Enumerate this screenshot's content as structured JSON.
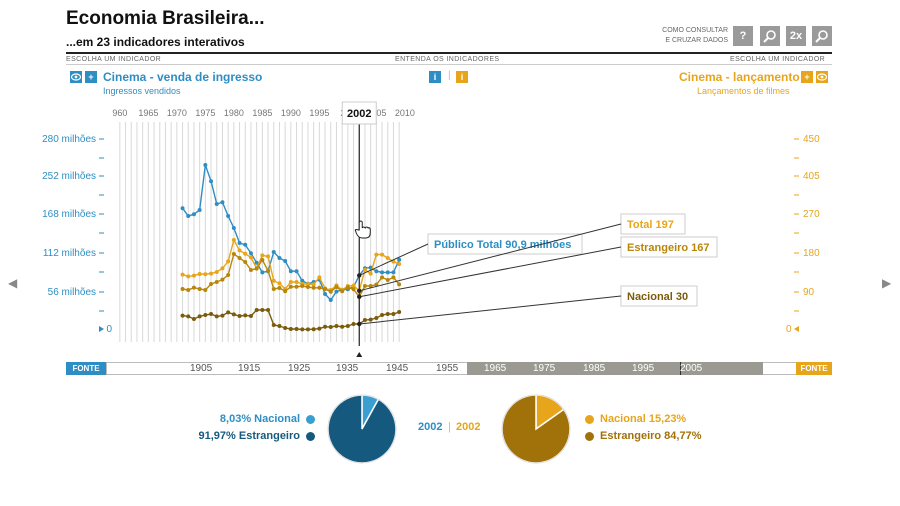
{
  "header": {
    "title": "Economia Brasileira...",
    "subtitle": "...em 23 indicadores interativos",
    "consult_line1": "COMO CONSULTAR",
    "consult_line2": "E CRUZAR DADOS",
    "help_label": "?",
    "zoom2x_label": "2x"
  },
  "sections": {
    "left_caption": "ESCOLHA UM INDICADOR",
    "center_caption": "ENTENDA OS INDICADORES",
    "right_caption": "ESCOLHA UM INDICADOR"
  },
  "left_indicator": {
    "title": "Cinema - venda de ingresso",
    "subtitle": "Ingressos vendidos",
    "color": "#2e8ec3"
  },
  "right_indicator": {
    "title": "Cinema - lançamento",
    "subtitle": "Lançamentos de filmes",
    "color": "#e7a51b"
  },
  "info_icon_label": "i",
  "plus_label": "+",
  "chart_data": {
    "type": "line",
    "x_axis_ticks": [
      "960",
      "1965",
      "1970",
      "1975",
      "1980",
      "1985",
      "1990",
      "1995",
      "200",
      "2005",
      "2010"
    ],
    "y_left_ticks": [
      "280 milhões",
      "252 milhões",
      "168 milhões",
      "112 milhões",
      "56 milhões",
      "0"
    ],
    "y_right_ticks": [
      "450",
      "405",
      "270",
      "180",
      "90",
      "0"
    ],
    "selected_year": "2002",
    "series": [
      {
        "name": "Público Total",
        "axis": "left",
        "color": "#2e8ec3",
        "x": [
          1971,
          1972,
          1973,
          1974,
          1975,
          1976,
          1977,
          1978,
          1979,
          1980,
          1981,
          1982,
          1983,
          1984,
          1985,
          1986,
          1987,
          1988,
          1989,
          1990,
          1991,
          1992,
          1993,
          1994,
          1995,
          1996,
          1997,
          1998,
          1999,
          2000,
          2001,
          2002,
          2003,
          2004,
          2005,
          2006,
          2007,
          2008,
          2009
        ],
        "values": [
          203,
          190,
          193,
          200,
          275,
          248,
          210,
          213,
          190,
          170,
          145,
          142,
          128,
          112,
          96,
          98,
          130,
          120,
          115,
          98,
          98,
          82,
          77,
          80,
          84,
          60,
          50,
          64,
          67,
          68,
          72,
          91,
          103,
          104,
          98,
          96,
          96,
          96,
          117
        ]
      },
      {
        "name": "Total",
        "axis": "right",
        "color": "#e7a51b",
        "x": [
          1971,
          1972,
          1973,
          1974,
          1975,
          1976,
          1977,
          1978,
          1979,
          1980,
          1981,
          1982,
          1983,
          1984,
          1985,
          1986,
          1987,
          1988,
          1989,
          1990,
          1991,
          1992,
          1993,
          1994,
          1995,
          1996,
          1997,
          1998,
          1999,
          2000,
          2001,
          2002,
          2003,
          2004,
          2005,
          2006,
          2007,
          2008,
          2009
        ],
        "values": [
          277,
          268,
          272,
          280,
          279,
          282,
          290,
          308,
          343,
          450,
          398,
          381,
          363,
          309,
          373,
          368,
          246,
          233,
          205,
          240,
          240,
          230,
          230,
          228,
          263,
          208,
          200,
          223,
          200,
          220,
          222,
          196,
          301,
          282,
          377,
          377,
          360,
          342,
          330
        ]
      },
      {
        "name": "Estrangeiro",
        "axis": "right",
        "color": "#b8860b",
        "x": [
          1971,
          1972,
          1973,
          1974,
          1975,
          1976,
          1977,
          1978,
          1979,
          1980,
          1981,
          1982,
          1983,
          1984,
          1985,
          1986,
          1987,
          1988,
          1989,
          1990,
          1991,
          1992,
          1993,
          1994,
          1995,
          1996,
          1997,
          1998,
          1999,
          2000,
          2001,
          2002,
          2003,
          2004,
          2005,
          2006,
          2007,
          2008,
          2009
        ],
        "values": [
          205,
          200,
          212,
          205,
          200,
          230,
          240,
          252,
          275,
          380,
          360,
          340,
          300,
          307,
          350,
          297,
          205,
          210,
          194,
          216,
          216,
          220,
          215,
          211,
          211,
          205,
          191,
          215,
          194,
          213,
          204,
          166,
          220,
          220,
          227,
          263,
          250,
          263,
          228
        ]
      },
      {
        "name": "Nacional",
        "axis": "right",
        "color": "#7a5c0c",
        "x": [
          1971,
          1972,
          1973,
          1974,
          1975,
          1976,
          1977,
          1978,
          1979,
          1980,
          1981,
          1982,
          1983,
          1984,
          1985,
          1986,
          1987,
          1988,
          1989,
          1990,
          1991,
          1992,
          1993,
          1994,
          1995,
          1996,
          1997,
          1998,
          1999,
          2000,
          2001,
          2002,
          2003,
          2004,
          2005,
          2006,
          2007,
          2008,
          2009
        ],
        "values": [
          72,
          68,
          55,
          68,
          75,
          80,
          68,
          72,
          88,
          78,
          70,
          73,
          70,
          100,
          100,
          100,
          25,
          20,
          10,
          5,
          5,
          3,
          3,
          4,
          7,
          16,
          15,
          20,
          16,
          20,
          30,
          30,
          50,
          52,
          60,
          75,
          80,
          80,
          90
        ]
      }
    ],
    "tooltips": [
      {
        "label": "Público Total 90,9 milhões",
        "series": "Público Total"
      },
      {
        "label": "Total 197",
        "series": "Total"
      },
      {
        "label": "Estrangeiro 167",
        "series": "Estrangeiro"
      },
      {
        "label": "Nacional 30",
        "series": "Nacional"
      }
    ]
  },
  "timeline": {
    "fonte_label": "FONTE",
    "labels": [
      "1905",
      "1915",
      "1925",
      "1935",
      "1945",
      "1955",
      "1965",
      "1975",
      "1985",
      "1995",
      "2005"
    ]
  },
  "pies": {
    "year_left": "2002",
    "year_right": "2002",
    "left": {
      "items": [
        {
          "label": "8,03% Nacional",
          "value": 8.03,
          "color": "#3b9ed1"
        },
        {
          "label": "91,97% Estrangeiro",
          "value": 91.97,
          "color": "#155a7e"
        }
      ]
    },
    "right": {
      "items": [
        {
          "label": "Nacional 15,23%",
          "value": 15.23,
          "color": "#e7a51b"
        },
        {
          "label": "Estrangeiro 84,77%",
          "value": 84.77,
          "color": "#a07209"
        }
      ]
    }
  }
}
